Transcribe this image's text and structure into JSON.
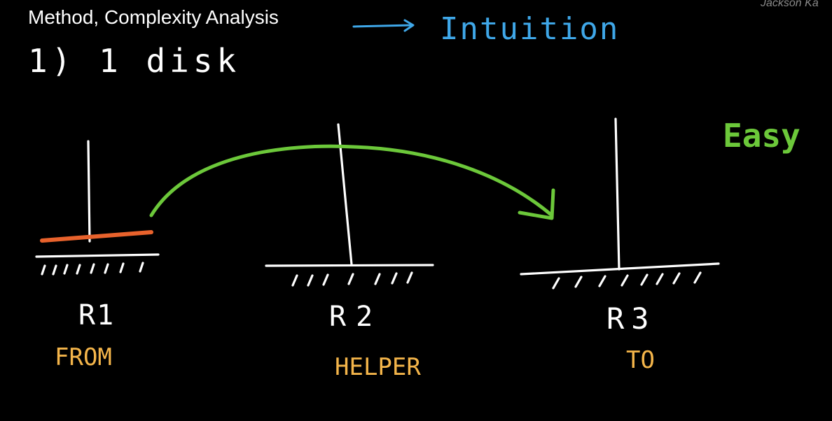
{
  "watermark": "Jackson Ka",
  "heading": {
    "title": "Method, Complexity Analysis",
    "aside": "Intuition",
    "item": "1) 1 disk"
  },
  "difficulty_label": "Easy",
  "rods": [
    {
      "label": "R1",
      "role": "FROM"
    },
    {
      "label": "R2",
      "role": "HELPER"
    },
    {
      "label": "R3",
      "role": "TO"
    }
  ],
  "colors": {
    "background": "#000000",
    "ink": "#ffffff",
    "arrow": "#6cc83a",
    "disk": "#e8622c",
    "role": "#f4b54a",
    "aside": "#3fa7e8",
    "easy": "#6cc83a",
    "watermark": "#8a8a8a"
  }
}
